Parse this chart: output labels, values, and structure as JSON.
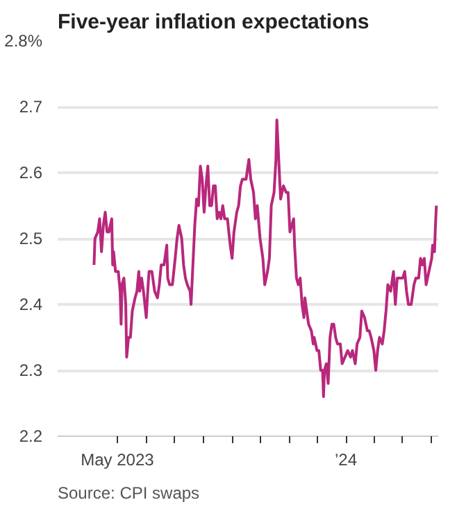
{
  "chart_data": {
    "type": "line",
    "title": "Five-year inflation expectations",
    "annotations": [
      "Source: CPI swaps"
    ],
    "x": [
      "2023-04-06",
      "2023-04-07",
      "2023-04-10",
      "2023-04-12",
      "2023-04-14",
      "2023-04-16",
      "2023-04-18",
      "2023-04-20",
      "2023-04-22",
      "2023-04-25",
      "2023-04-26",
      "2023-04-27",
      "2023-04-29",
      "2023-05-02",
      "2023-05-04",
      "2023-05-05",
      "2023-05-06",
      "2023-05-08",
      "2023-05-10",
      "2023-05-11",
      "2023-05-13",
      "2023-05-15",
      "2023-05-17",
      "2023-05-20",
      "2023-05-22",
      "2023-05-24",
      "2023-05-25",
      "2023-05-27",
      "2023-05-29",
      "2023-06-01",
      "2023-06-03",
      "2023-06-04",
      "2023-06-07",
      "2023-06-10",
      "2023-06-13",
      "2023-06-15",
      "2023-06-17",
      "2023-06-20",
      "2023-06-23",
      "2023-06-24",
      "2023-06-26",
      "2023-06-29",
      "2023-07-02",
      "2023-07-04",
      "2023-07-06",
      "2023-07-09",
      "2023-07-11",
      "2023-07-13",
      "2023-07-15",
      "2023-07-18",
      "2023-07-19",
      "2023-07-21",
      "2023-07-23",
      "2023-07-25",
      "2023-07-27",
      "2023-07-29",
      "2023-07-31",
      "2023-08-02",
      "2023-08-04",
      "2023-08-06",
      "2023-08-08",
      "2023-08-10",
      "2023-08-12",
      "2023-08-14",
      "2023-08-16",
      "2023-08-18",
      "2023-08-20",
      "2023-08-22",
      "2023-08-24",
      "2023-08-27",
      "2023-08-30",
      "2023-09-01",
      "2023-09-03",
      "2023-09-06",
      "2023-09-08",
      "2023-09-10",
      "2023-09-12",
      "2023-09-16",
      "2023-09-19",
      "2023-09-21",
      "2023-09-24",
      "2023-09-26",
      "2023-09-28",
      "2023-10-01",
      "2023-10-04",
      "2023-10-06",
      "2023-10-09",
      "2023-10-11",
      "2023-10-13",
      "2023-10-16",
      "2023-10-18",
      "2023-10-19",
      "2023-10-21",
      "2023-10-23",
      "2023-10-26",
      "2023-10-29",
      "2023-10-31",
      "2023-11-02",
      "2023-11-04",
      "2023-11-06",
      "2023-11-07",
      "2023-11-09",
      "2023-11-11",
      "2023-11-13",
      "2023-11-15",
      "2023-11-17",
      "2023-11-18",
      "2023-11-20",
      "2023-11-22",
      "2023-11-25",
      "2023-11-27",
      "2023-11-28",
      "2023-12-01",
      "2023-12-03",
      "2023-12-05",
      "2023-12-07",
      "2023-12-08",
      "2023-12-09",
      "2023-12-11",
      "2023-12-13",
      "2023-12-15",
      "2023-12-17",
      "2023-12-19",
      "2023-12-21",
      "2023-12-23",
      "2023-12-26",
      "2023-12-28",
      "2023-12-31",
      "2024-01-03",
      "2024-01-06",
      "2024-01-08",
      "2024-01-11",
      "2024-01-13",
      "2024-01-16",
      "2024-01-18",
      "2024-01-21",
      "2024-01-24",
      "2024-01-26",
      "2024-01-28",
      "2024-01-31",
      "2024-02-02",
      "2024-02-04",
      "2024-02-06",
      "2024-02-09",
      "2024-02-11",
      "2024-02-13",
      "2024-02-15",
      "2024-02-18",
      "2024-02-21",
      "2024-02-23",
      "2024-02-25",
      "2024-02-28",
      "2024-03-02",
      "2024-03-04",
      "2024-03-06",
      "2024-03-08",
      "2024-03-11",
      "2024-03-14",
      "2024-03-16",
      "2024-03-19",
      "2024-03-21",
      "2024-03-23",
      "2024-03-25",
      "2024-03-27",
      "2024-03-30",
      "2024-04-02",
      "2024-04-03",
      "2024-04-05",
      "2024-04-06",
      "2024-04-07"
    ],
    "series": [
      {
        "color": "#b8287c",
        "values": [
          2.46,
          2.5,
          2.51,
          2.53,
          2.48,
          2.52,
          2.54,
          2.51,
          2.51,
          2.53,
          2.46,
          2.48,
          2.45,
          2.45,
          2.42,
          2.37,
          2.43,
          2.44,
          2.4,
          2.32,
          2.35,
          2.35,
          2.39,
          2.41,
          2.42,
          2.45,
          2.42,
          2.44,
          2.42,
          2.38,
          2.43,
          2.45,
          2.45,
          2.42,
          2.41,
          2.43,
          2.46,
          2.46,
          2.49,
          2.44,
          2.43,
          2.43,
          2.47,
          2.5,
          2.52,
          2.5,
          2.46,
          2.44,
          2.43,
          2.42,
          2.4,
          2.46,
          2.52,
          2.56,
          2.55,
          2.61,
          2.59,
          2.54,
          2.58,
          2.61,
          2.55,
          2.55,
          2.58,
          2.58,
          2.53,
          2.54,
          2.53,
          2.55,
          2.53,
          2.53,
          2.49,
          2.47,
          2.51,
          2.54,
          2.55,
          2.58,
          2.59,
          2.59,
          2.62,
          2.59,
          2.57,
          2.53,
          2.55,
          2.5,
          2.47,
          2.43,
          2.45,
          2.47,
          2.55,
          2.57,
          2.62,
          2.68,
          2.62,
          2.56,
          2.58,
          2.57,
          2.57,
          2.51,
          2.52,
          2.53,
          2.49,
          2.44,
          2.43,
          2.44,
          2.4,
          2.38,
          2.41,
          2.39,
          2.37,
          2.36,
          2.34,
          2.35,
          2.33,
          2.33,
          2.3,
          2.3,
          2.26,
          2.3,
          2.31,
          2.28,
          2.35,
          2.37,
          2.37,
          2.35,
          2.34,
          2.34,
          2.31,
          2.32,
          2.33,
          2.32,
          2.33,
          2.31,
          2.34,
          2.35,
          2.39,
          2.38,
          2.36,
          2.36,
          2.35,
          2.33,
          2.3,
          2.33,
          2.35,
          2.34,
          2.36,
          2.39,
          2.43,
          2.42,
          2.45,
          2.4,
          2.44,
          2.44,
          2.44,
          2.45,
          2.42,
          2.4,
          2.4,
          2.43,
          2.44,
          2.44,
          2.47,
          2.46,
          2.47,
          2.43,
          2.45,
          2.47,
          2.49,
          2.48,
          2.52,
          2.55
        ]
      }
    ],
    "xlim": [
      "2023-02-26",
      "2024-04-09"
    ],
    "xticks": [
      {
        "value": "2023-05-01",
        "label": "May 2023"
      },
      {
        "value": "2023-06-01",
        "label": null
      },
      {
        "value": "2023-07-01",
        "label": null
      },
      {
        "value": "2023-08-01",
        "label": null
      },
      {
        "value": "2023-09-01",
        "label": null
      },
      {
        "value": "2023-10-01",
        "label": null
      },
      {
        "value": "2023-11-01",
        "label": null
      },
      {
        "value": "2023-12-01",
        "label": null
      },
      {
        "value": "2024-01-01",
        "label": "’24"
      },
      {
        "value": "2024-02-01",
        "label": null
      },
      {
        "value": "2024-03-01",
        "label": null
      },
      {
        "value": "2024-04-01",
        "label": null
      }
    ],
    "ylim": [
      2.2,
      2.8
    ],
    "yticks": [
      2.2,
      2.3,
      2.4,
      2.5,
      2.6,
      2.7,
      {
        "value": 2.8,
        "label": "2.8%"
      }
    ],
    "grid": "y",
    "marker": "none",
    "line_style": "solid"
  }
}
